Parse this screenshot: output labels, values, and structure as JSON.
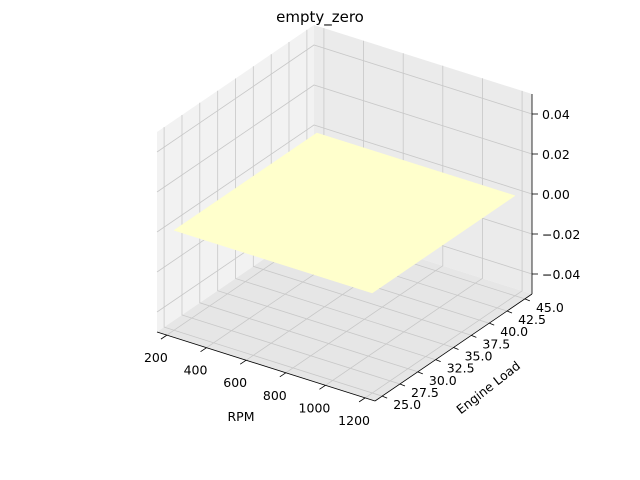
{
  "chart_data": {
    "type": "surface",
    "title": "empty_zero",
    "xlabel": "RPM",
    "ylabel": "Engine Load",
    "zlabel": "",
    "xlim": [
      150,
      1250
    ],
    "ylim": [
      24,
      46
    ],
    "zlim": [
      -0.05,
      0.05
    ],
    "x_ticks": [
      200,
      400,
      600,
      800,
      1000,
      1200
    ],
    "y_ticks": [
      25.0,
      27.5,
      30.0,
      32.5,
      35.0,
      37.5,
      40.0,
      42.5,
      45.0
    ],
    "z_ticks": [
      -0.04,
      -0.02,
      0.0,
      0.02,
      0.04
    ],
    "x_tick_labels": [
      "200",
      "400",
      "600",
      "800",
      "1000",
      "1200"
    ],
    "y_tick_labels": [
      "25.0",
      "27.5",
      "30.0",
      "32.5",
      "35.0",
      "37.5",
      "40.0",
      "42.5",
      "45.0"
    ],
    "z_tick_labels": [
      "−0.04",
      "−0.02",
      "0.00",
      "0.02",
      "0.04"
    ],
    "surface": {
      "x_range": [
        200,
        1200
      ],
      "y_range": [
        25,
        45
      ],
      "z_value": 0.0,
      "color": "#ffffcc"
    },
    "grid": true,
    "pane_colors": {
      "left": "#f2f2f2",
      "back": "#ebebeb",
      "floor": "#e6e6e6",
      "grid": "#c8c8c8"
    }
  }
}
